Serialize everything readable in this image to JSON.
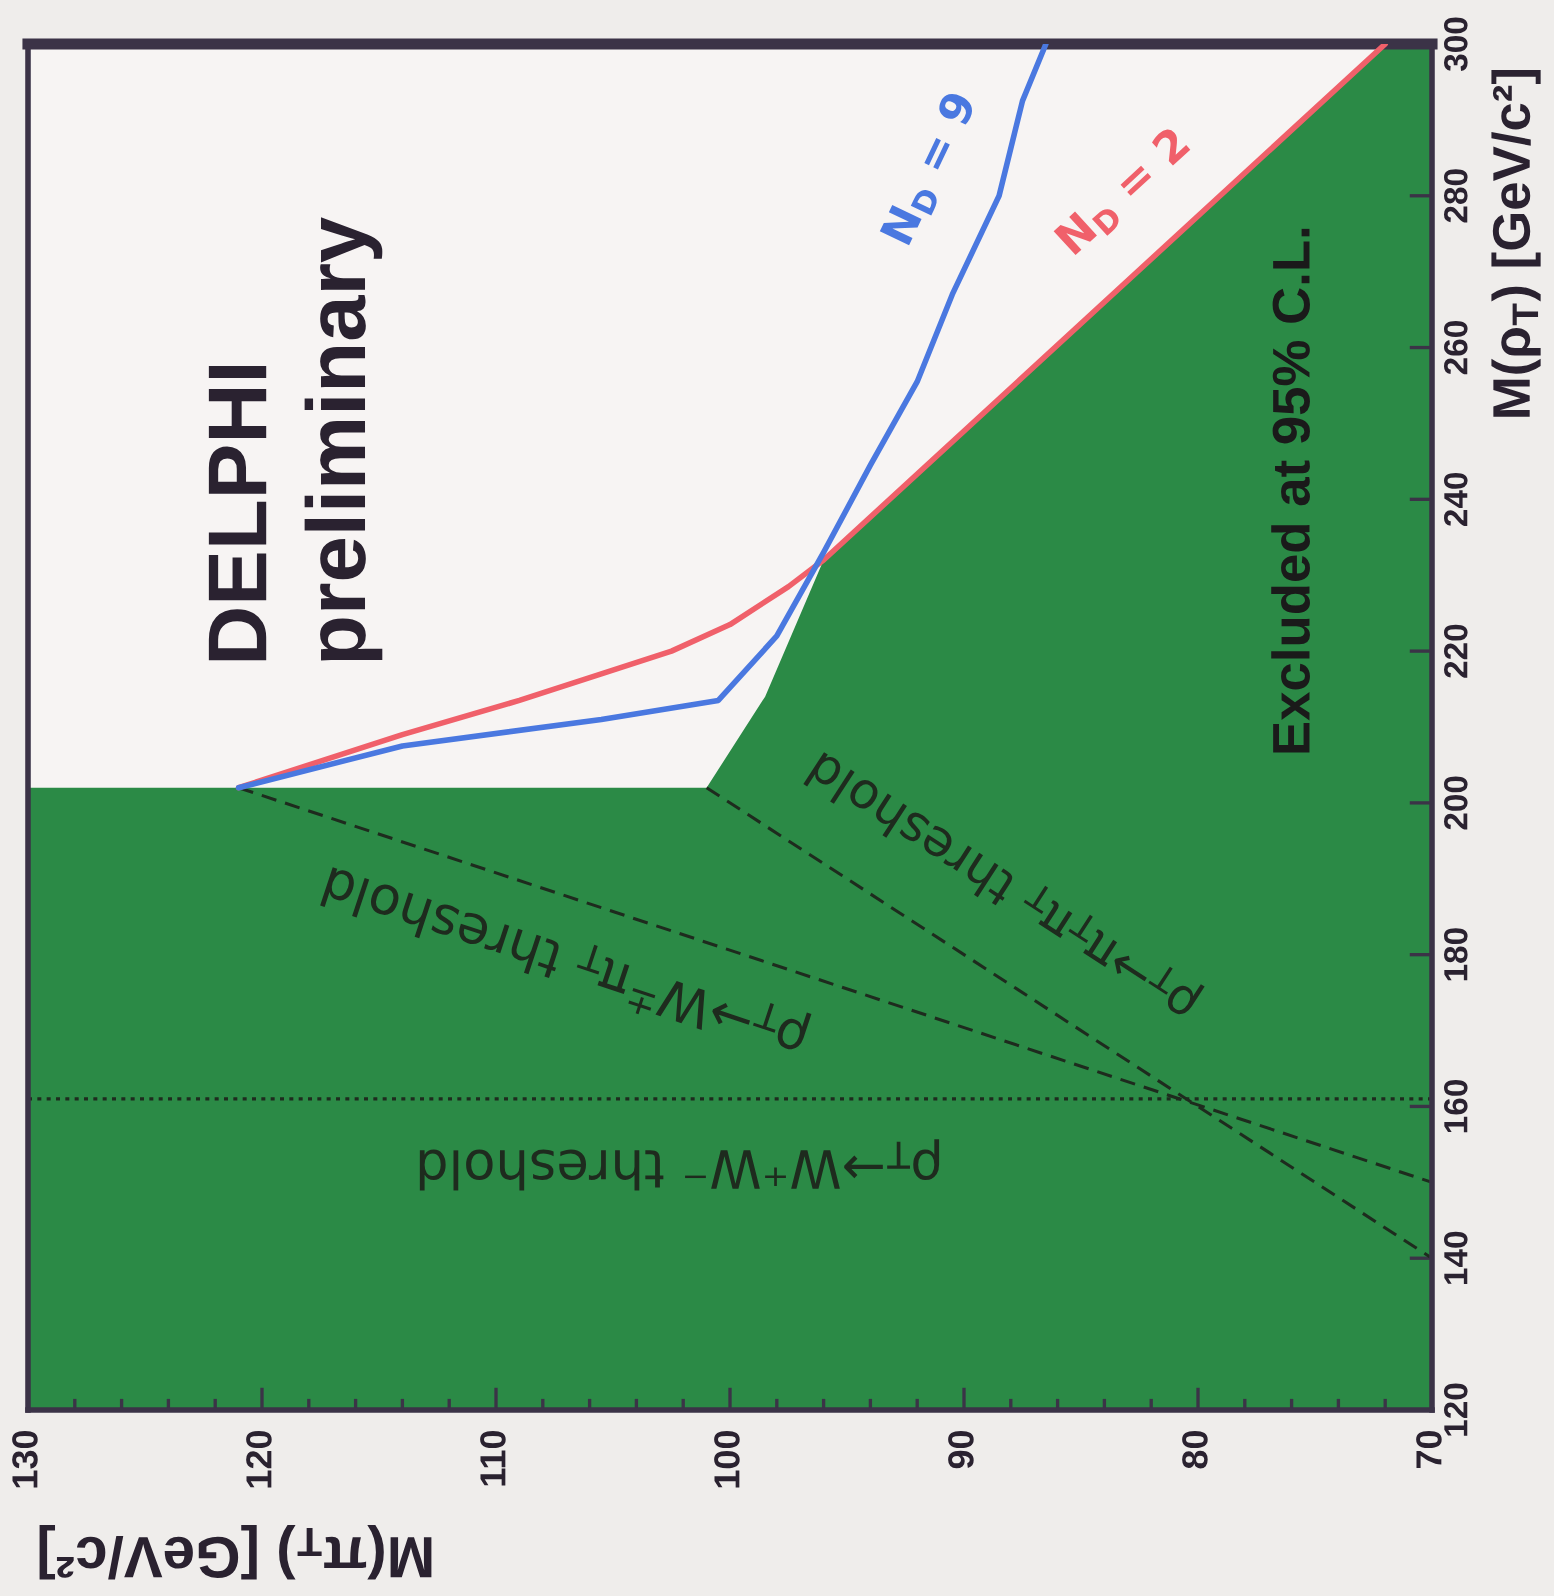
{
  "chart_data": {
    "type": "line",
    "xlabel": "M(π$_{T}$) [GeV/c²]",
    "ylabel": "M(ρ$_{T}$) [GeV/c²]",
    "xlim": [
      130,
      70
    ],
    "xticks": [
      130,
      120,
      110,
      100,
      90,
      80,
      70
    ],
    "ylim": [
      120,
      300
    ],
    "yticks": [
      120,
      140,
      160,
      180,
      200,
      220,
      240,
      260,
      280,
      300
    ],
    "series": [
      {
        "type": "area",
        "name": "Excluded at 95% C.L.",
        "color": "#2b8a46",
        "x": [
          130,
          101,
          98.5,
          96,
          72,
          70
        ],
        "values": [
          202,
          202,
          214,
          232,
          300,
          300
        ]
      },
      {
        "name": "N$_{D}$ = 2",
        "color": "#f0606a",
        "x": [
          121,
          114,
          109,
          105.5,
          102.5,
          100,
          97.5,
          96,
          72
        ],
        "values": [
          202,
          209,
          213.5,
          217,
          220,
          223.5,
          228.5,
          232,
          300
        ]
      },
      {
        "name": "N$_{D}$ = 9",
        "color": "#4a78e0",
        "x": [
          121,
          114,
          105.5,
          100.5,
          98,
          96,
          94,
          92,
          90.5,
          88.5,
          87.5,
          86.5
        ],
        "values": [
          202,
          207.5,
          211,
          213.5,
          222,
          233,
          244.5,
          255.5,
          267,
          280,
          292.5,
          300
        ]
      },
      {
        "name": "ρ$_{T}$→W$^{±}$π$_{T}$ threshold",
        "color": "#1e2b1e",
        "line_style": "dashed",
        "x": [
          121,
          70
        ],
        "values": [
          202,
          150
        ]
      },
      {
        "name": "ρ$_{T}$→π$_{T}$π$_{T}$ threshold",
        "color": "#1e2b1e",
        "line_style": "dashed",
        "x": [
          101,
          70
        ],
        "values": [
          202,
          140
        ]
      }
    ],
    "ref_lines": [
      {
        "axis": "y",
        "value": 161,
        "label": "ρ$_{T}$→W⁺W⁻ threshold",
        "color": "#1e2b1e",
        "line_style": "dotted"
      }
    ],
    "annotations": [
      "DELPHI\npreliminary"
    ]
  }
}
